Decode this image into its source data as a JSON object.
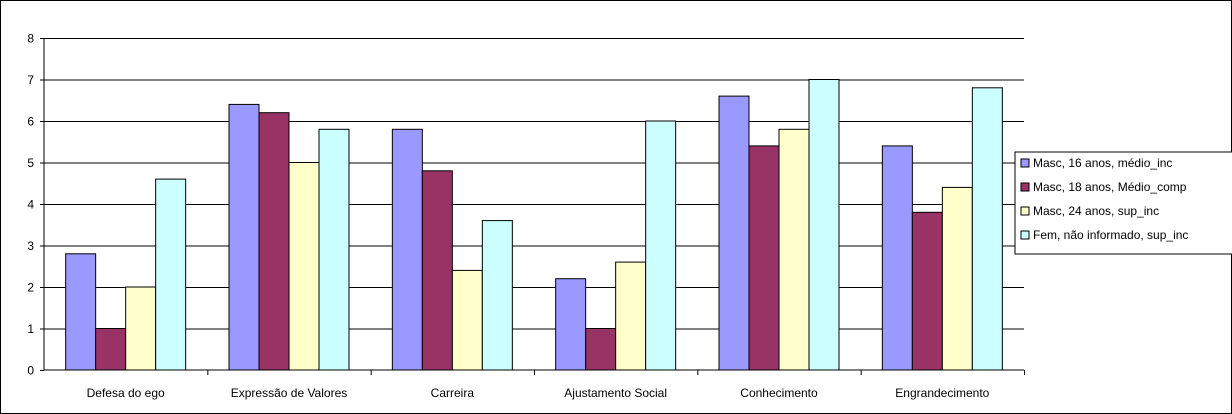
{
  "chart_data": {
    "type": "bar",
    "title": "",
    "xlabel": "",
    "ylabel": "",
    "ylim": [
      0,
      8
    ],
    "yticks": [
      "0",
      "1",
      "2",
      "3",
      "4",
      "5",
      "6",
      "7",
      "8"
    ],
    "grid": true,
    "legend_position": "right",
    "categories": [
      "Defesa do ego",
      "Expressão de Valores",
      "Carreira",
      "Ajustamento Social",
      "Conhecimento",
      "Engrandecimento"
    ],
    "series": [
      {
        "name": "Masc, 16 anos, médio_inc",
        "color": "#9999ff",
        "values": [
          2.8,
          6.4,
          5.8,
          2.2,
          6.6,
          5.4
        ]
      },
      {
        "name": "Masc, 18 anos, Médio_comp",
        "color": "#993366",
        "values": [
          1.0,
          6.2,
          4.8,
          1.0,
          5.4,
          3.8
        ]
      },
      {
        "name": "Masc, 24 anos, sup_inc",
        "color": "#ffffcc",
        "values": [
          2.0,
          5.0,
          2.4,
          2.6,
          5.8,
          4.4
        ]
      },
      {
        "name": "Fem, não informado, sup_inc",
        "color": "#ccffff",
        "values": [
          4.6,
          5.8,
          3.6,
          6.0,
          7.0,
          6.8
        ]
      }
    ]
  }
}
